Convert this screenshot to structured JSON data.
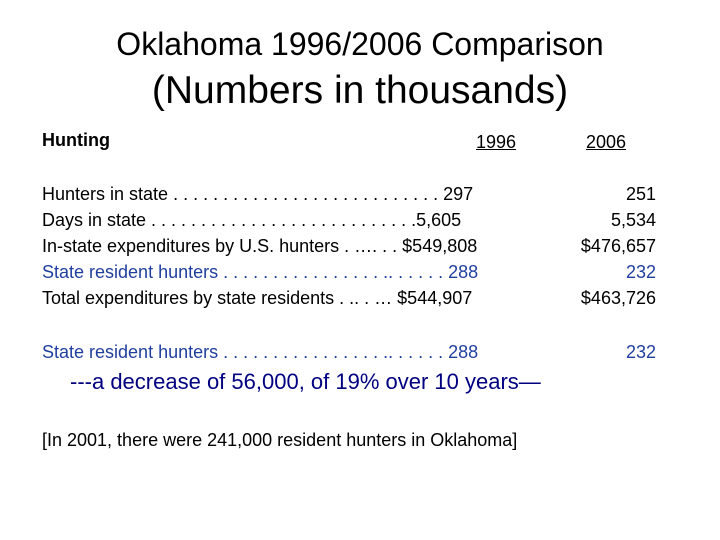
{
  "title": {
    "line1": "Oklahoma 1996/2006 Comparison",
    "line2": "(Numbers in thousands)"
  },
  "header": {
    "section": "Hunting",
    "col_1996": "1996",
    "col_2006": "2006"
  },
  "rows": [
    {
      "label": "Hunters in state . . . . . . . . . . . . . . . . . . . . . . . . . . . 297",
      "value_2006": "251"
    },
    {
      "label": "Days in state . . . . . . . . . . . . . . . . . . . . . . . . . . .5,605",
      "value_2006": "5,534"
    },
    {
      "label": "In-state expenditures by U.S. hunters . …. . . $549,808",
      "value_2006": "$476,657"
    },
    {
      "label": "State resident hunters . . . . . . . . . . . . . . . . .. . . . . . 288",
      "value_2006": "232"
    },
    {
      "label": "Total expenditures by state residents . .. . … $544,907",
      "value_2006": "$463,726"
    }
  ],
  "highlight": {
    "label": "State resident hunters . . . . . . . . . . . . . . . . .. . . . . . 288",
    "value_2006": "232"
  },
  "decrease_text": "---a decrease of 56,000, of 19% over 10 years—",
  "note_text": "[In 2001, there were 241,000 resident hunters in Oklahoma]",
  "colors": {
    "text": "#000000",
    "blue_text": "#1f3f9f",
    "navy_text": "#000080",
    "background": "#ffffff"
  }
}
